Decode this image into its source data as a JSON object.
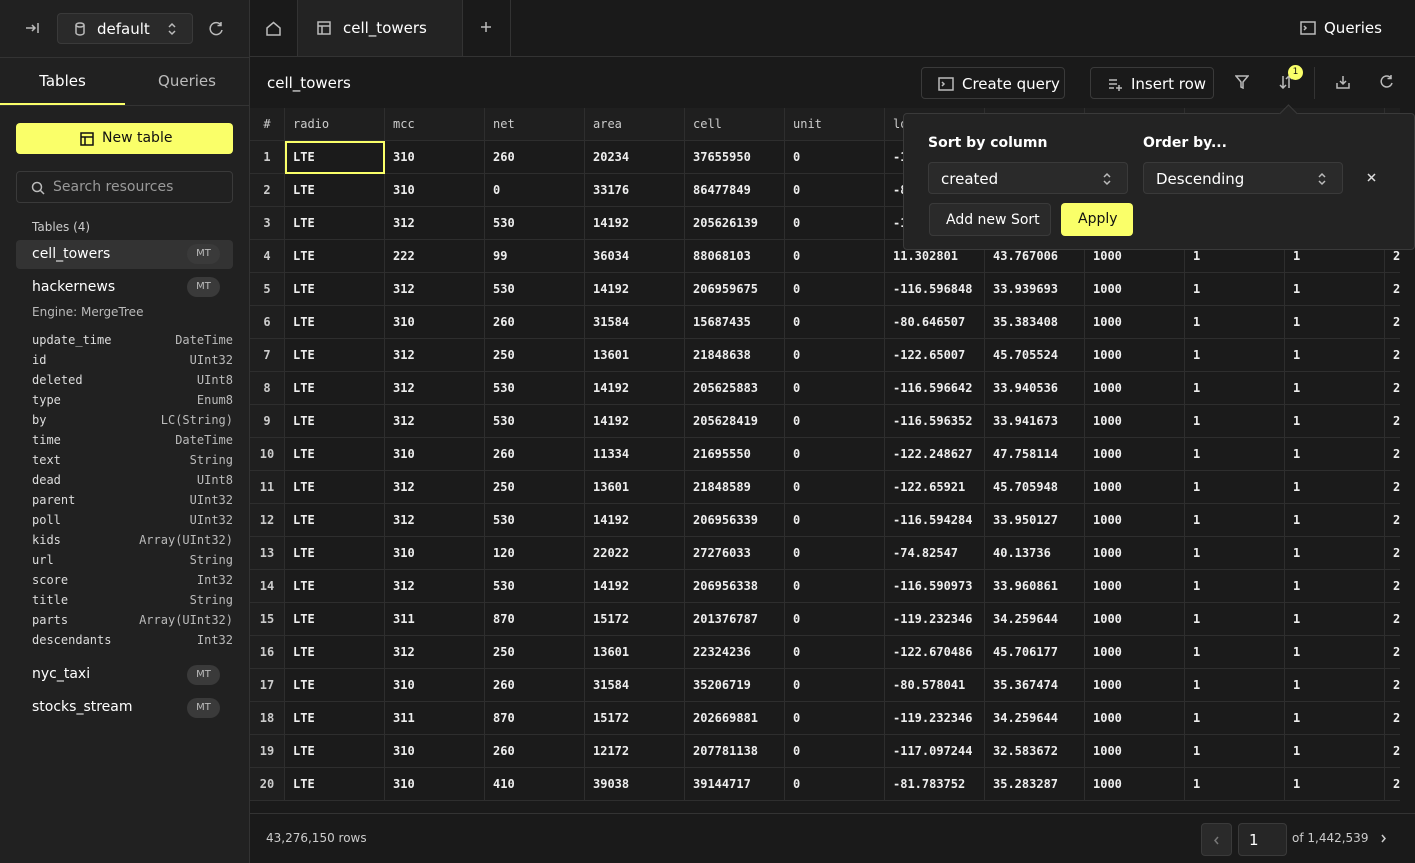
{
  "topbar": {
    "database": "default",
    "tab": "cell_towers",
    "queries_button": "Queries"
  },
  "sidebar": {
    "tabs": [
      "Tables",
      "Queries"
    ],
    "new_table": "New table",
    "search_placeholder": "Search resources",
    "section_title": "Tables (4)",
    "tables": [
      {
        "name": "cell_towers",
        "badge": "MT"
      },
      {
        "name": "hackernews",
        "badge": "MT",
        "engine": "Engine: MergeTree",
        "columns": [
          [
            "update_time",
            "DateTime"
          ],
          [
            "id",
            "UInt32"
          ],
          [
            "deleted",
            "UInt8"
          ],
          [
            "type",
            "Enum8"
          ],
          [
            "by",
            "LC(String)"
          ],
          [
            "time",
            "DateTime"
          ],
          [
            "text",
            "String"
          ],
          [
            "dead",
            "UInt8"
          ],
          [
            "parent",
            "UInt32"
          ],
          [
            "poll",
            "UInt32"
          ],
          [
            "kids",
            "Array(UInt32)"
          ],
          [
            "url",
            "String"
          ],
          [
            "score",
            "Int32"
          ],
          [
            "title",
            "String"
          ],
          [
            "parts",
            "Array(UInt32)"
          ],
          [
            "descendants",
            "Int32"
          ]
        ]
      },
      {
        "name": "nyc_taxi",
        "badge": "MT"
      },
      {
        "name": "stocks_stream",
        "badge": "MT"
      }
    ]
  },
  "main": {
    "title": "cell_towers",
    "create_query": "Create query",
    "insert_row": "Insert row",
    "sort_badge": "1"
  },
  "table": {
    "headers": [
      "#",
      "radio",
      "mcc",
      "net",
      "area",
      "cell",
      "unit",
      "lo"
    ],
    "rows": [
      [
        "1",
        "LTE",
        "310",
        "260",
        "20234",
        "37655950",
        "0",
        "-1"
      ],
      [
        "2",
        "LTE",
        "310",
        "0",
        "33176",
        "86477849",
        "0",
        "-8"
      ],
      [
        "3",
        "LTE",
        "312",
        "530",
        "14192",
        "205626139",
        "0",
        "-1"
      ],
      [
        "4",
        "LTE",
        "222",
        "99",
        "36034",
        "88068103",
        "0",
        "11.302801",
        "43.767006",
        "1000",
        "1",
        "1",
        "2"
      ],
      [
        "5",
        "LTE",
        "312",
        "530",
        "14192",
        "206959675",
        "0",
        "-116.596848",
        "33.939693",
        "1000",
        "1",
        "1",
        "2"
      ],
      [
        "6",
        "LTE",
        "310",
        "260",
        "31584",
        "15687435",
        "0",
        "-80.646507",
        "35.383408",
        "1000",
        "1",
        "1",
        "2"
      ],
      [
        "7",
        "LTE",
        "312",
        "250",
        "13601",
        "21848638",
        "0",
        "-122.65007",
        "45.705524",
        "1000",
        "1",
        "1",
        "2"
      ],
      [
        "8",
        "LTE",
        "312",
        "530",
        "14192",
        "205625883",
        "0",
        "-116.596642",
        "33.940536",
        "1000",
        "1",
        "1",
        "2"
      ],
      [
        "9",
        "LTE",
        "312",
        "530",
        "14192",
        "205628419",
        "0",
        "-116.596352",
        "33.941673",
        "1000",
        "1",
        "1",
        "2"
      ],
      [
        "10",
        "LTE",
        "310",
        "260",
        "11334",
        "21695550",
        "0",
        "-122.248627",
        "47.758114",
        "1000",
        "1",
        "1",
        "2"
      ],
      [
        "11",
        "LTE",
        "312",
        "250",
        "13601",
        "21848589",
        "0",
        "-122.65921",
        "45.705948",
        "1000",
        "1",
        "1",
        "2"
      ],
      [
        "12",
        "LTE",
        "312",
        "530",
        "14192",
        "206956339",
        "0",
        "-116.594284",
        "33.950127",
        "1000",
        "1",
        "1",
        "2"
      ],
      [
        "13",
        "LTE",
        "310",
        "120",
        "22022",
        "27276033",
        "0",
        "-74.82547",
        "40.13736",
        "1000",
        "1",
        "1",
        "2"
      ],
      [
        "14",
        "LTE",
        "312",
        "530",
        "14192",
        "206956338",
        "0",
        "-116.590973",
        "33.960861",
        "1000",
        "1",
        "1",
        "2"
      ],
      [
        "15",
        "LTE",
        "311",
        "870",
        "15172",
        "201376787",
        "0",
        "-119.232346",
        "34.259644",
        "1000",
        "1",
        "1",
        "2"
      ],
      [
        "16",
        "LTE",
        "312",
        "250",
        "13601",
        "22324236",
        "0",
        "-122.670486",
        "45.706177",
        "1000",
        "1",
        "1",
        "2"
      ],
      [
        "17",
        "LTE",
        "310",
        "260",
        "31584",
        "35206719",
        "0",
        "-80.578041",
        "35.367474",
        "1000",
        "1",
        "1",
        "2"
      ],
      [
        "18",
        "LTE",
        "311",
        "870",
        "15172",
        "202669881",
        "0",
        "-119.232346",
        "34.259644",
        "1000",
        "1",
        "1",
        "2"
      ],
      [
        "19",
        "LTE",
        "310",
        "260",
        "12172",
        "207781138",
        "0",
        "-117.097244",
        "32.583672",
        "1000",
        "1",
        "1",
        "2"
      ],
      [
        "20",
        "LTE",
        "310",
        "410",
        "39038",
        "39144717",
        "0",
        "-81.783752",
        "35.283287",
        "1000",
        "1",
        "1",
        "2"
      ]
    ]
  },
  "sort_popover": {
    "sort_label": "Sort by column",
    "sort_value": "created",
    "order_label": "Order by...",
    "order_value": "Descending",
    "add_sort": "Add new Sort",
    "apply": "Apply"
  },
  "footer": {
    "row_count": "43,276,150 rows",
    "page": "1",
    "page_total": "of 1,442,539"
  }
}
